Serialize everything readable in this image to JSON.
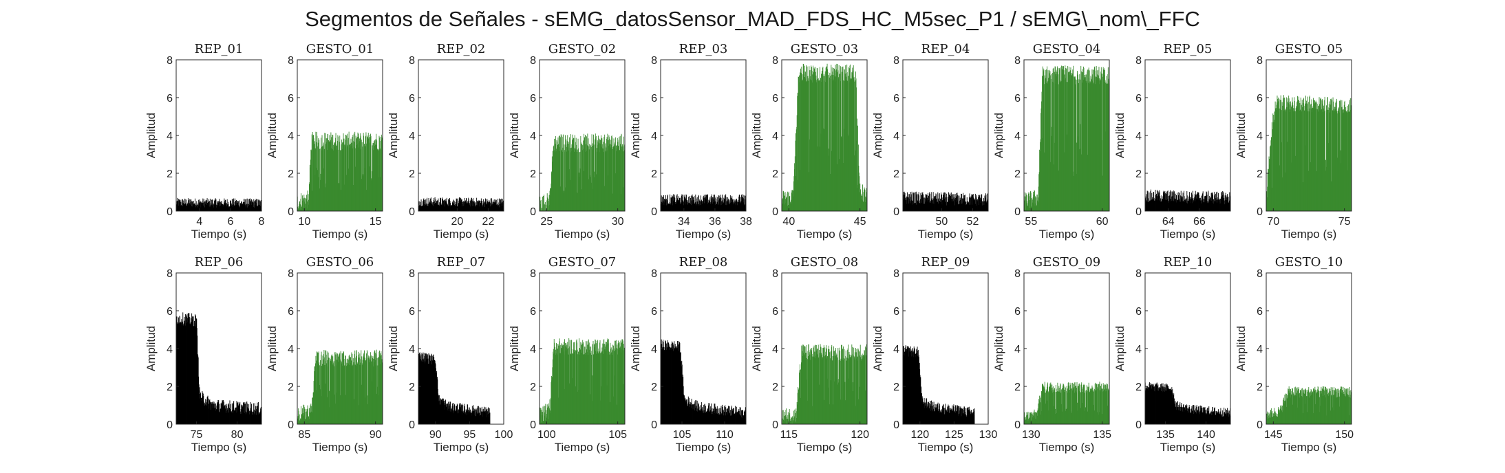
{
  "figure": {
    "title": "Segmentos de Señales - sEMG_datosSensor_MAD_FDS_HC_M5sec_P1 / sEMG\\_nom\\_FFC",
    "colors": {
      "rep": "#000000",
      "gesto": "#3a8a2e",
      "axes": "#262626"
    }
  },
  "chart_data": [
    {
      "title": "REP_01",
      "type": "area",
      "series_color": "rep",
      "xlim": [
        2.5,
        8
      ],
      "xticks": [
        4,
        6,
        8
      ],
      "ylim": [
        0,
        8
      ],
      "yticks": [
        0,
        2,
        4,
        6,
        8
      ],
      "xlabel": "Tiempo (s)",
      "ylabel": "Amplitud",
      "profile": [
        [
          2.5,
          0.45
        ],
        [
          8,
          0.42
        ]
      ],
      "noise": 0.25,
      "x_end": 8
    },
    {
      "title": "GESTO_01",
      "type": "area",
      "series_color": "gesto",
      "xlim": [
        9.5,
        15.5
      ],
      "xticks": [
        10,
        15
      ],
      "ylim": [
        0,
        8
      ],
      "yticks": [
        0,
        2,
        4,
        6,
        8
      ],
      "xlabel": "Tiempo (s)",
      "ylabel": "Amplitud",
      "profile": [
        [
          9.5,
          0.5
        ],
        [
          10.3,
          0.6
        ],
        [
          10.5,
          3.7
        ],
        [
          15.5,
          3.7
        ]
      ],
      "noise": 0.5,
      "x_end": 15.5
    },
    {
      "title": "REP_02",
      "type": "area",
      "series_color": "rep",
      "xlim": [
        17.5,
        23
      ],
      "xticks": [
        20,
        22
      ],
      "ylim": [
        0,
        8
      ],
      "yticks": [
        0,
        2,
        4,
        6,
        8
      ],
      "xlabel": "Tiempo (s)",
      "ylabel": "Amplitud",
      "profile": [
        [
          17.5,
          0.5
        ],
        [
          23,
          0.45
        ]
      ],
      "noise": 0.25,
      "x_end": 23
    },
    {
      "title": "GESTO_02",
      "type": "area",
      "series_color": "gesto",
      "xlim": [
        24.5,
        30.5
      ],
      "xticks": [
        25,
        30
      ],
      "ylim": [
        0,
        8
      ],
      "yticks": [
        0,
        2,
        4,
        6,
        8
      ],
      "xlabel": "Tiempo (s)",
      "ylabel": "Amplitud",
      "profile": [
        [
          24.5,
          0.4
        ],
        [
          25.2,
          0.5
        ],
        [
          25.5,
          3.6
        ],
        [
          30.5,
          3.6
        ]
      ],
      "noise": 0.5,
      "x_end": 30.5
    },
    {
      "title": "REP_03",
      "type": "area",
      "series_color": "rep",
      "xlim": [
        32.5,
        38
      ],
      "xticks": [
        34,
        36,
        38
      ],
      "ylim": [
        0,
        8
      ],
      "yticks": [
        0,
        2,
        4,
        6,
        8
      ],
      "xlabel": "Tiempo (s)",
      "ylabel": "Amplitud",
      "profile": [
        [
          32.5,
          0.6
        ],
        [
          38,
          0.6
        ]
      ],
      "noise": 0.3,
      "x_end": 38
    },
    {
      "title": "GESTO_03",
      "type": "area",
      "series_color": "gesto",
      "xlim": [
        39.5,
        45.5
      ],
      "xticks": [
        40,
        45
      ],
      "ylim": [
        0,
        8
      ],
      "yticks": [
        0,
        2,
        4,
        6,
        8
      ],
      "xlabel": "Tiempo (s)",
      "ylabel": "Amplitud",
      "profile": [
        [
          39.5,
          0.6
        ],
        [
          40.3,
          0.8
        ],
        [
          40.7,
          7.3
        ],
        [
          44.7,
          7.3
        ],
        [
          45,
          1.0
        ],
        [
          45.5,
          0.8
        ]
      ],
      "noise": 0.5,
      "x_end": 45.5
    },
    {
      "title": "REP_04",
      "type": "area",
      "series_color": "rep",
      "xlim": [
        47.5,
        53
      ],
      "xticks": [
        50,
        52
      ],
      "ylim": [
        0,
        8
      ],
      "yticks": [
        0,
        2,
        4,
        6,
        8
      ],
      "xlabel": "Tiempo (s)",
      "ylabel": "Amplitud",
      "profile": [
        [
          47.5,
          0.7
        ],
        [
          53,
          0.6
        ]
      ],
      "noise": 0.35,
      "x_end": 53
    },
    {
      "title": "GESTO_04",
      "type": "area",
      "series_color": "gesto",
      "xlim": [
        54.5,
        60.5
      ],
      "xticks": [
        55,
        60
      ],
      "ylim": [
        0,
        8
      ],
      "yticks": [
        0,
        2,
        4,
        6,
        8
      ],
      "xlabel": "Tiempo (s)",
      "ylabel": "Amplitud",
      "profile": [
        [
          54.5,
          0.5
        ],
        [
          55.5,
          0.7
        ],
        [
          55.8,
          7.2
        ],
        [
          60.5,
          7.2
        ]
      ],
      "noise": 0.5,
      "x_end": 60.5
    },
    {
      "title": "REP_05",
      "type": "area",
      "series_color": "rep",
      "xlim": [
        62.5,
        68
      ],
      "xticks": [
        64,
        66
      ],
      "ylim": [
        0,
        8
      ],
      "yticks": [
        0,
        2,
        4,
        6,
        8
      ],
      "xlabel": "Tiempo (s)",
      "ylabel": "Amplitud",
      "profile": [
        [
          62.5,
          0.8
        ],
        [
          68,
          0.7
        ]
      ],
      "noise": 0.35,
      "x_end": 68
    },
    {
      "title": "GESTO_05",
      "type": "area",
      "series_color": "gesto",
      "xlim": [
        69.5,
        75.5
      ],
      "xticks": [
        70,
        75
      ],
      "ylim": [
        0,
        8
      ],
      "yticks": [
        0,
        2,
        4,
        6,
        8
      ],
      "xlabel": "Tiempo (s)",
      "ylabel": "Amplitud",
      "profile": [
        [
          69.5,
          0.7
        ],
        [
          69.9,
          4.5
        ],
        [
          70.2,
          5.7
        ],
        [
          75.5,
          5.6
        ]
      ],
      "noise": 0.45,
      "x_end": 75.5
    },
    {
      "title": "REP_06",
      "type": "area",
      "series_color": "rep",
      "xlim": [
        72.5,
        83
      ],
      "xticks": [
        75,
        80
      ],
      "ylim": [
        0,
        8
      ],
      "yticks": [
        0,
        2,
        4,
        6,
        8
      ],
      "xlabel": "Tiempo (s)",
      "ylabel": "Amplitud",
      "profile": [
        [
          72.5,
          5.6
        ],
        [
          75,
          5.5
        ],
        [
          75.4,
          1.5
        ],
        [
          77,
          1.0
        ],
        [
          83,
          0.8
        ]
      ],
      "noise": 0.35,
      "x_end": 83
    },
    {
      "title": "GESTO_06",
      "type": "area",
      "series_color": "gesto",
      "xlim": [
        84.5,
        90.5
      ],
      "xticks": [
        85,
        90
      ],
      "ylim": [
        0,
        8
      ],
      "yticks": [
        0,
        2,
        4,
        6,
        8
      ],
      "xlabel": "Tiempo (s)",
      "ylabel": "Amplitud",
      "profile": [
        [
          84.5,
          0.5
        ],
        [
          85.5,
          0.7
        ],
        [
          85.8,
          3.5
        ],
        [
          90.5,
          3.5
        ]
      ],
      "noise": 0.45,
      "x_end": 90.5
    },
    {
      "title": "REP_07",
      "type": "area",
      "series_color": "rep",
      "xlim": [
        87.5,
        100
      ],
      "xticks": [
        90,
        95,
        100
      ],
      "ylim": [
        0,
        8
      ],
      "yticks": [
        0,
        2,
        4,
        6,
        8
      ],
      "xlabel": "Tiempo (s)",
      "ylabel": "Amplitud",
      "profile": [
        [
          87.5,
          3.6
        ],
        [
          90,
          3.4
        ],
        [
          90.5,
          1.3
        ],
        [
          92,
          0.9
        ],
        [
          98,
          0.6
        ]
      ],
      "noise": 0.3,
      "x_end": 98
    },
    {
      "title": "GESTO_07",
      "type": "area",
      "series_color": "gesto",
      "xlim": [
        99.5,
        105.5
      ],
      "xticks": [
        100,
        105
      ],
      "ylim": [
        0,
        8
      ],
      "yticks": [
        0,
        2,
        4,
        6,
        8
      ],
      "xlabel": "Tiempo (s)",
      "ylabel": "Amplitud",
      "profile": [
        [
          99.5,
          0.5
        ],
        [
          100.2,
          0.7
        ],
        [
          100.5,
          4.1
        ],
        [
          105.5,
          4.1
        ]
      ],
      "noise": 0.45,
      "x_end": 105.5
    },
    {
      "title": "REP_08",
      "type": "area",
      "series_color": "rep",
      "xlim": [
        102.5,
        112.5
      ],
      "xticks": [
        105,
        110
      ],
      "ylim": [
        0,
        8
      ],
      "yticks": [
        0,
        2,
        4,
        6,
        8
      ],
      "xlabel": "Tiempo (s)",
      "ylabel": "Amplitud",
      "profile": [
        [
          102.5,
          4.2
        ],
        [
          104.8,
          4.1
        ],
        [
          105.3,
          1.3
        ],
        [
          107,
          0.9
        ],
        [
          112.5,
          0.6
        ]
      ],
      "noise": 0.3,
      "x_end": 112.5
    },
    {
      "title": "GESTO_08",
      "type": "area",
      "series_color": "gesto",
      "xlim": [
        114.5,
        120.5
      ],
      "xticks": [
        115,
        120
      ],
      "ylim": [
        0,
        8
      ],
      "yticks": [
        0,
        2,
        4,
        6,
        8
      ],
      "xlabel": "Tiempo (s)",
      "ylabel": "Amplitud",
      "profile": [
        [
          114.5,
          0.4
        ],
        [
          115.5,
          0.5
        ],
        [
          115.9,
          3.8
        ],
        [
          120.5,
          3.8
        ]
      ],
      "noise": 0.45,
      "x_end": 120.5
    },
    {
      "title": "REP_09",
      "type": "area",
      "series_color": "rep",
      "xlim": [
        117.5,
        130
      ],
      "xticks": [
        120,
        125,
        130
      ],
      "ylim": [
        0,
        8
      ],
      "yticks": [
        0,
        2,
        4,
        6,
        8
      ],
      "xlabel": "Tiempo (s)",
      "ylabel": "Amplitud",
      "profile": [
        [
          117.5,
          3.9
        ],
        [
          119.8,
          3.8
        ],
        [
          120.3,
          1.2
        ],
        [
          122,
          0.9
        ],
        [
          128,
          0.6
        ]
      ],
      "noise": 0.3,
      "x_end": 128
    },
    {
      "title": "GESTO_09",
      "type": "area",
      "series_color": "gesto",
      "xlim": [
        129.5,
        135.5
      ],
      "xticks": [
        130,
        135
      ],
      "ylim": [
        0,
        8
      ],
      "yticks": [
        0,
        2,
        4,
        6,
        8
      ],
      "xlabel": "Tiempo (s)",
      "ylabel": "Amplitud",
      "profile": [
        [
          129.5,
          0.4
        ],
        [
          130.4,
          0.5
        ],
        [
          130.8,
          1.95
        ],
        [
          135.5,
          1.95
        ]
      ],
      "noise": 0.3,
      "x_end": 135.5
    },
    {
      "title": "REP_10",
      "type": "area",
      "series_color": "rep",
      "xlim": [
        132.5,
        143
      ],
      "xticks": [
        135,
        140
      ],
      "ylim": [
        0,
        8
      ],
      "yticks": [
        0,
        2,
        4,
        6,
        8
      ],
      "xlabel": "Tiempo (s)",
      "ylabel": "Amplitud",
      "profile": [
        [
          132.5,
          2.0
        ],
        [
          135.8,
          1.9
        ],
        [
          136.3,
          1.0
        ],
        [
          138,
          0.8
        ],
        [
          143,
          0.6
        ]
      ],
      "noise": 0.25,
      "x_end": 143
    },
    {
      "title": "GESTO_10",
      "type": "area",
      "series_color": "gesto",
      "xlim": [
        144.5,
        150.5
      ],
      "xticks": [
        145,
        150
      ],
      "ylim": [
        0,
        8
      ],
      "yticks": [
        0,
        2,
        4,
        6,
        8
      ],
      "xlabel": "Tiempo (s)",
      "ylabel": "Amplitud",
      "profile": [
        [
          144.5,
          0.5
        ],
        [
          145.5,
          0.7
        ],
        [
          146,
          1.7
        ],
        [
          150.5,
          1.7
        ]
      ],
      "noise": 0.3,
      "x_end": 150.5
    }
  ]
}
